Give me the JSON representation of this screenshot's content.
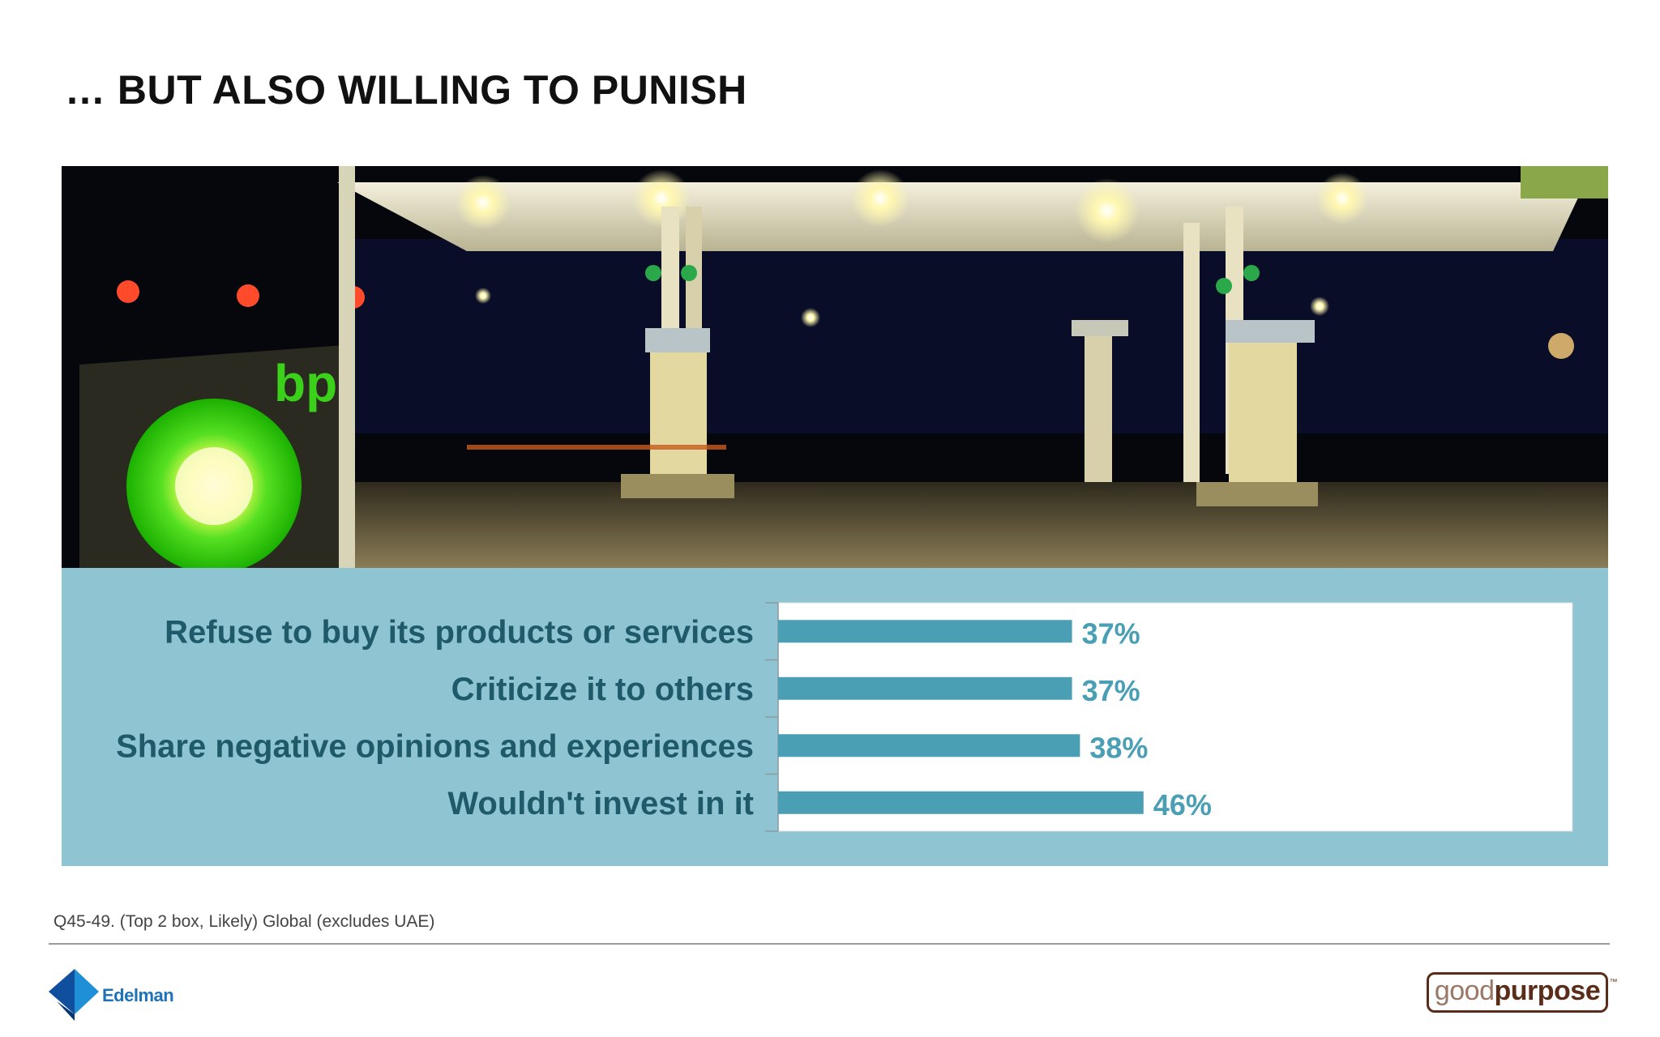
{
  "slide": {
    "title": "… BUT ALSO WILLING TO PUNISH",
    "footnote": "Q45-49. (Top 2 box, Likely) Global (excludes UAE)"
  },
  "photo": {
    "sign_text": "bp"
  },
  "chart_data": {
    "type": "bar",
    "orientation": "horizontal",
    "categories": [
      "Refuse to buy its products or services",
      "Criticize it to others",
      "Share negative opinions and experiences",
      "Wouldn't invest in it"
    ],
    "values": [
      37,
      37,
      38,
      46
    ],
    "value_labels": [
      "37%",
      "37%",
      "38%",
      "46%"
    ],
    "unit": "%",
    "xlim": [
      0,
      100
    ],
    "title": "",
    "xlabel": "",
    "ylabel": "",
    "grid": false,
    "legend": "none",
    "bar_color": "#4a9fb5",
    "label_color": "#1f5a6a",
    "value_color": "#4a9fb5",
    "panel_color": "#8fc4d3"
  },
  "logos": {
    "left": "Edelman",
    "right_light": "good",
    "right_bold": "purpose",
    "right_mark": "™"
  }
}
